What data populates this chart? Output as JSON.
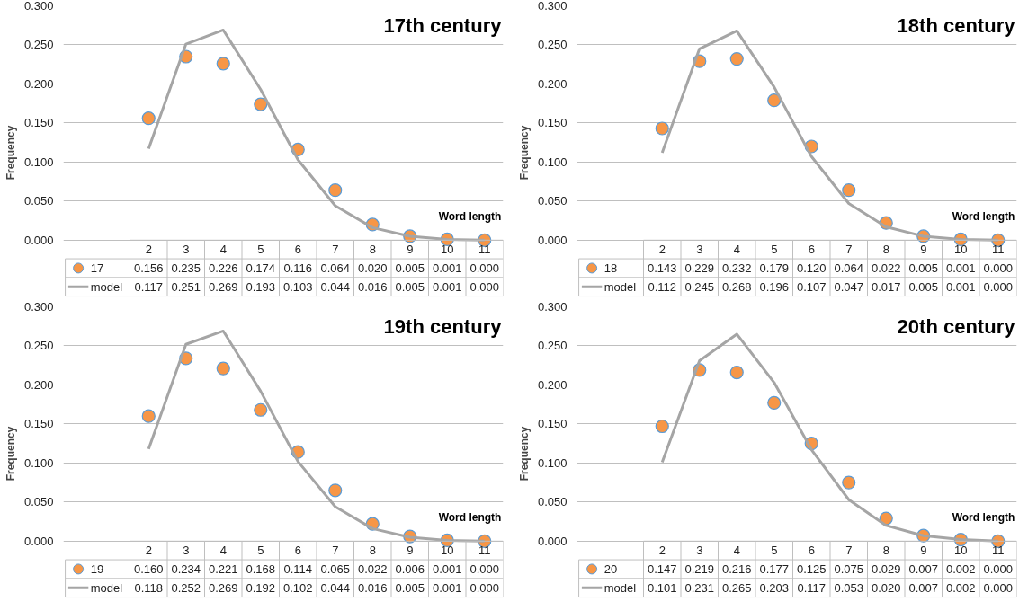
{
  "chart_data": [
    {
      "type": "line",
      "title": "17th century",
      "xlabel": "Word length",
      "ylabel": "Frequency",
      "categories": [
        "2",
        "3",
        "4",
        "5",
        "6",
        "7",
        "8",
        "9",
        "10",
        "11"
      ],
      "ylim": [
        0,
        0.3
      ],
      "yticks": [
        {
          "value": 0,
          "label": "0.000"
        },
        {
          "value": 0.05,
          "label": "0.050"
        },
        {
          "value": 0.1,
          "label": "0.100"
        },
        {
          "value": 0.15,
          "label": "0.150"
        },
        {
          "value": 0.2,
          "label": "0.200"
        },
        {
          "value": 0.25,
          "label": "0.250"
        },
        {
          "value": 0.3,
          "label": "0.300"
        }
      ],
      "grid": "y",
      "legend": "bottom",
      "series": [
        {
          "name": "17",
          "type": "scatter",
          "marker": "circle",
          "color": "#f79646",
          "values": [
            0.156,
            0.235,
            0.226,
            0.174,
            0.116,
            0.064,
            0.02,
            0.005,
            0.001,
            0.0
          ],
          "value_labels": [
            "0.156",
            "0.235",
            "0.226",
            "0.174",
            "0.116",
            "0.064",
            "0.020",
            "0.005",
            "0.001",
            "0.000"
          ]
        },
        {
          "name": "model",
          "color": "#a5a5a5",
          "values": [
            0.117,
            0.251,
            0.269,
            0.193,
            0.103,
            0.044,
            0.016,
            0.005,
            0.001,
            0.0
          ],
          "value_labels": [
            "0.117",
            "0.251",
            "0.269",
            "0.193",
            "0.103",
            "0.044",
            "0.016",
            "0.005",
            "0.001",
            "0.000"
          ]
        }
      ]
    },
    {
      "type": "line",
      "title": "18th century",
      "xlabel": "Word length",
      "ylabel": "Frequency",
      "categories": [
        "2",
        "3",
        "4",
        "5",
        "6",
        "7",
        "8",
        "9",
        "10",
        "11"
      ],
      "ylim": [
        0,
        0.3
      ],
      "yticks": [
        {
          "value": 0,
          "label": "0.000"
        },
        {
          "value": 0.05,
          "label": "0.050"
        },
        {
          "value": 0.1,
          "label": "0.100"
        },
        {
          "value": 0.15,
          "label": "0.150"
        },
        {
          "value": 0.2,
          "label": "0.200"
        },
        {
          "value": 0.25,
          "label": "0.250"
        },
        {
          "value": 0.3,
          "label": "0.300"
        }
      ],
      "grid": "y",
      "legend": "bottom",
      "series": [
        {
          "name": "18",
          "type": "scatter",
          "marker": "circle",
          "color": "#f79646",
          "values": [
            0.143,
            0.229,
            0.232,
            0.179,
            0.12,
            0.064,
            0.022,
            0.005,
            0.001,
            0.0
          ],
          "value_labels": [
            "0.143",
            "0.229",
            "0.232",
            "0.179",
            "0.120",
            "0.064",
            "0.022",
            "0.005",
            "0.001",
            "0.000"
          ]
        },
        {
          "name": "model",
          "color": "#a5a5a5",
          "values": [
            0.112,
            0.245,
            0.268,
            0.196,
            0.107,
            0.047,
            0.017,
            0.005,
            0.001,
            0.0
          ],
          "value_labels": [
            "0.112",
            "0.245",
            "0.268",
            "0.196",
            "0.107",
            "0.047",
            "0.017",
            "0.005",
            "0.001",
            "0.000"
          ]
        }
      ]
    },
    {
      "type": "line",
      "title": "19th century",
      "xlabel": "Word length",
      "ylabel": "Frequency",
      "categories": [
        "2",
        "3",
        "4",
        "5",
        "6",
        "7",
        "8",
        "9",
        "10",
        "11"
      ],
      "ylim": [
        0,
        0.3
      ],
      "yticks": [
        {
          "value": 0,
          "label": "0.000"
        },
        {
          "value": 0.05,
          "label": "0.050"
        },
        {
          "value": 0.1,
          "label": "0.100"
        },
        {
          "value": 0.15,
          "label": "0.150"
        },
        {
          "value": 0.2,
          "label": "0.200"
        },
        {
          "value": 0.25,
          "label": "0.250"
        },
        {
          "value": 0.3,
          "label": "0.300"
        }
      ],
      "grid": "y",
      "legend": "bottom",
      "series": [
        {
          "name": "19",
          "type": "scatter",
          "marker": "circle",
          "color": "#f79646",
          "values": [
            0.16,
            0.234,
            0.221,
            0.168,
            0.114,
            0.065,
            0.022,
            0.006,
            0.001,
            0.0
          ],
          "value_labels": [
            "0.160",
            "0.234",
            "0.221",
            "0.168",
            "0.114",
            "0.065",
            "0.022",
            "0.006",
            "0.001",
            "0.000"
          ]
        },
        {
          "name": "model",
          "color": "#a5a5a5",
          "values": [
            0.118,
            0.252,
            0.269,
            0.192,
            0.102,
            0.044,
            0.016,
            0.005,
            0.001,
            0.0
          ],
          "value_labels": [
            "0.118",
            "0.252",
            "0.269",
            "0.192",
            "0.102",
            "0.044",
            "0.016",
            "0.005",
            "0.001",
            "0.000"
          ]
        }
      ]
    },
    {
      "type": "line",
      "title": "20th century",
      "xlabel": "Word length",
      "ylabel": "Frequency",
      "categories": [
        "2",
        "3",
        "4",
        "5",
        "6",
        "7",
        "8",
        "9",
        "10",
        "11"
      ],
      "ylim": [
        0,
        0.3
      ],
      "yticks": [
        {
          "value": 0,
          "label": "0.000"
        },
        {
          "value": 0.05,
          "label": "0.050"
        },
        {
          "value": 0.1,
          "label": "0.100"
        },
        {
          "value": 0.15,
          "label": "0.150"
        },
        {
          "value": 0.2,
          "label": "0.200"
        },
        {
          "value": 0.25,
          "label": "0.250"
        },
        {
          "value": 0.3,
          "label": "0.300"
        }
      ],
      "grid": "y",
      "legend": "bottom",
      "series": [
        {
          "name": "20",
          "type": "scatter",
          "marker": "circle",
          "color": "#f79646",
          "values": [
            0.147,
            0.219,
            0.216,
            0.177,
            0.125,
            0.075,
            0.029,
            0.007,
            0.002,
            0.0
          ],
          "value_labels": [
            "0.147",
            "0.219",
            "0.216",
            "0.177",
            "0.125",
            "0.075",
            "0.029",
            "0.007",
            "0.002",
            "0.000"
          ]
        },
        {
          "name": "model",
          "color": "#a5a5a5",
          "values": [
            0.101,
            0.231,
            0.265,
            0.203,
            0.117,
            0.053,
            0.02,
            0.007,
            0.002,
            0.0
          ],
          "value_labels": [
            "0.101",
            "0.231",
            "0.265",
            "0.203",
            "0.117",
            "0.053",
            "0.020",
            "0.007",
            "0.002",
            "0.000"
          ]
        }
      ]
    }
  ]
}
